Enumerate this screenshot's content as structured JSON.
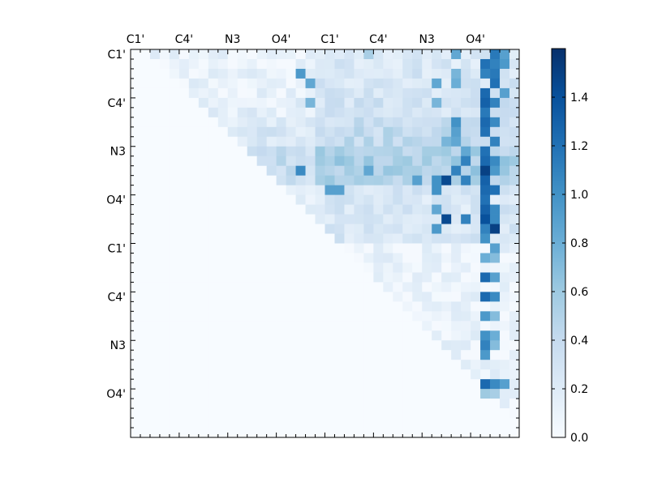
{
  "chart_data": {
    "type": "heatmap",
    "title": "",
    "xlabel": "",
    "ylabel": "",
    "n_rows": 40,
    "n_cols": 40,
    "x_tick_labels": [
      "C1'",
      "C4'",
      "N3",
      "O4'",
      "C1'",
      "C4'",
      "N3",
      "O4'"
    ],
    "y_tick_labels": [
      "C1'",
      "C4'",
      "N3",
      "O4'",
      "C1'",
      "C4'",
      "N3",
      "O4'"
    ],
    "tick_step": 5,
    "colormap": "Blues",
    "colormap_stops": [
      "#f7fbff",
      "#deebf7",
      "#c6dbef",
      "#9ecae1",
      "#6baed6",
      "#4292c6",
      "#2171b5",
      "#08519c",
      "#08306b"
    ],
    "vmin": 0.0,
    "vmax": 1.6,
    "colorbar_ticks": [
      "0.0",
      "0.2",
      "0.4",
      "0.6",
      "0.8",
      "1.0",
      "1.2",
      "1.4"
    ],
    "colorbar_tick_values": [
      0.0,
      0.2,
      0.4,
      0.6,
      0.8,
      1.0,
      1.2,
      1.4
    ],
    "background_value": 0.0,
    "row_baseline": [
      0.1,
      0.1,
      0.1,
      0.1,
      0.1,
      0.15,
      0.15,
      0.2,
      0.25,
      0.25,
      0.35,
      0.4,
      0.4,
      0.35,
      0.1,
      0.1,
      0.1,
      0.1,
      0.1,
      0.1,
      0.1,
      0.1,
      0.1,
      0.1,
      0.1,
      0.1,
      0.1,
      0.1,
      0.1,
      0.1,
      0.1,
      0.1,
      0.1,
      0.1,
      0.1,
      0.1,
      0.1,
      0.1,
      0.1,
      0.1
    ],
    "highlight_cells": [
      [
        0,
        24,
        0.55
      ],
      [
        0,
        33,
        0.85
      ],
      [
        0,
        37,
        1.15
      ],
      [
        0,
        38,
        0.9
      ],
      [
        1,
        36,
        1.2
      ],
      [
        1,
        37,
        1.1
      ],
      [
        1,
        38,
        0.95
      ],
      [
        2,
        17,
        0.95
      ],
      [
        2,
        33,
        0.75
      ],
      [
        2,
        36,
        1.1
      ],
      [
        2,
        37,
        1.15
      ],
      [
        3,
        18,
        0.85
      ],
      [
        3,
        31,
        0.85
      ],
      [
        3,
        33,
        0.8
      ],
      [
        3,
        37,
        1.2
      ],
      [
        4,
        36,
        1.25
      ],
      [
        4,
        38,
        0.9
      ],
      [
        5,
        18,
        0.75
      ],
      [
        5,
        31,
        0.75
      ],
      [
        5,
        36,
        1.3
      ],
      [
        5,
        37,
        1.1
      ],
      [
        6,
        36,
        1.15
      ],
      [
        7,
        33,
        1.0
      ],
      [
        7,
        36,
        1.25
      ],
      [
        7,
        37,
        1.05
      ],
      [
        8,
        33,
        0.9
      ],
      [
        8,
        36,
        1.2
      ],
      [
        9,
        32,
        0.75
      ],
      [
        9,
        33,
        0.85
      ],
      [
        9,
        37,
        1.1
      ],
      [
        10,
        34,
        0.85
      ],
      [
        10,
        36,
        1.2
      ],
      [
        11,
        34,
        1.1
      ],
      [
        11,
        36,
        1.25
      ],
      [
        11,
        37,
        1.05
      ],
      [
        12,
        17,
        1.05
      ],
      [
        12,
        24,
        0.85
      ],
      [
        12,
        33,
        1.1
      ],
      [
        12,
        36,
        1.5
      ],
      [
        12,
        37,
        0.95
      ],
      [
        13,
        29,
        0.9
      ],
      [
        13,
        31,
        1.0
      ],
      [
        13,
        32,
        1.45
      ],
      [
        13,
        34,
        1.1
      ],
      [
        13,
        36,
        1.3
      ],
      [
        14,
        20,
        0.9
      ],
      [
        14,
        21,
        0.9
      ],
      [
        14,
        31,
        1.0
      ],
      [
        14,
        36,
        1.25
      ],
      [
        14,
        37,
        1.2
      ],
      [
        15,
        36,
        1.2
      ],
      [
        16,
        31,
        0.85
      ],
      [
        16,
        36,
        1.3
      ],
      [
        16,
        37,
        1.05
      ],
      [
        17,
        32,
        1.45
      ],
      [
        17,
        34,
        1.1
      ],
      [
        17,
        36,
        1.4
      ],
      [
        17,
        37,
        1.05
      ],
      [
        18,
        31,
        0.95
      ],
      [
        18,
        36,
        1.1
      ],
      [
        18,
        37,
        1.5
      ],
      [
        19,
        36,
        1.0
      ],
      [
        20,
        37,
        0.9
      ],
      [
        21,
        36,
        0.8
      ],
      [
        21,
        37,
        0.7
      ],
      [
        23,
        36,
        1.25
      ],
      [
        23,
        37,
        0.9
      ],
      [
        25,
        36,
        1.25
      ],
      [
        25,
        37,
        1.05
      ],
      [
        27,
        36,
        0.95
      ],
      [
        27,
        37,
        0.7
      ],
      [
        29,
        36,
        1.0
      ],
      [
        29,
        37,
        0.8
      ],
      [
        30,
        36,
        1.1
      ],
      [
        30,
        37,
        0.7
      ],
      [
        31,
        36,
        0.95
      ],
      [
        34,
        36,
        1.25
      ],
      [
        34,
        37,
        1.05
      ],
      [
        34,
        38,
        0.9
      ],
      [
        35,
        36,
        0.6
      ],
      [
        35,
        37,
        0.55
      ]
    ]
  }
}
